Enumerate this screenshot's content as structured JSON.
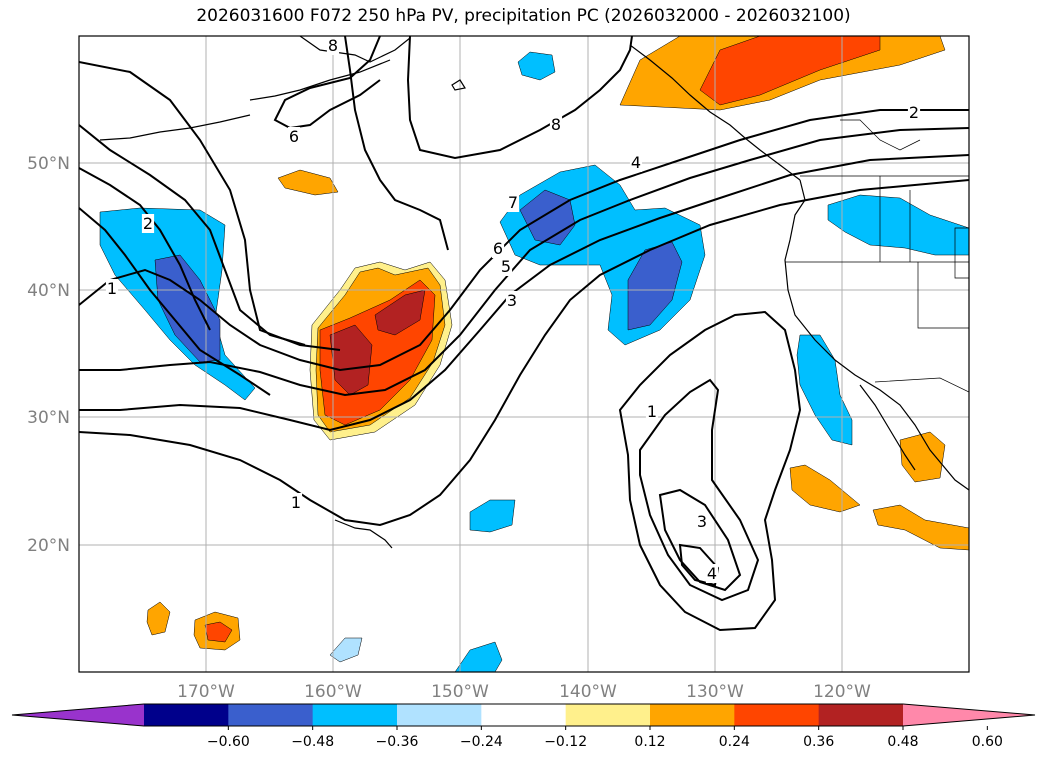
{
  "title": "2026031600 F072 250 hPa PV, precipitation PC (2026032000 - 2026032100)",
  "map": {
    "lon_labels": [
      "170°W",
      "160°W",
      "150°W",
      "140°W",
      "130°W",
      "120°W"
    ],
    "lat_labels": [
      "50°N",
      "40°N",
      "30°N",
      "20°N"
    ],
    "pv_contour_labels": [
      "1",
      "1",
      "1",
      "2",
      "2",
      "3",
      "3",
      "4",
      "4",
      "5",
      "6",
      "6",
      "7",
      "8",
      "8"
    ]
  },
  "colorbar": {
    "tick_labels": [
      "−0.60",
      "−0.48",
      "−0.36",
      "−0.24",
      "−0.12",
      "0.12",
      "0.24",
      "0.36",
      "0.48",
      "0.60"
    ],
    "colors": [
      "#9933cc",
      "#00008b",
      "#3a5fcd",
      "#00bfff",
      "#b0e2ff",
      "#ffffff",
      "#fff08c",
      "#ffa500",
      "#ff4500",
      "#b22222",
      "#ff88aa"
    ]
  },
  "shading_colors": {
    "neg_weak": "#b0e2ff",
    "neg_mid": "#00bfff",
    "neg_strong": "#3a5fcd",
    "pos_weak": "#fff08c",
    "pos_mid": "#ffa500",
    "pos_strong": "#ff4500",
    "pos_max": "#b22222"
  }
}
